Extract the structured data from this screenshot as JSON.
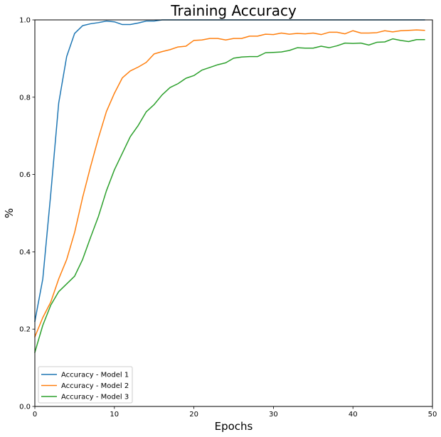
{
  "chart_data": {
    "type": "line",
    "title": "Training Accuracy",
    "xlabel": "Epochs",
    "ylabel": "%",
    "xlim": [
      0,
      50
    ],
    "ylim": [
      0.0,
      1.0
    ],
    "x_ticks": [
      "0",
      "10",
      "20",
      "30",
      "40",
      "50"
    ],
    "y_ticks": [
      "0.0",
      "0.2",
      "0.4",
      "0.6",
      "0.8",
      "1.0"
    ],
    "grid": false,
    "legend_position": "lower-left",
    "x": [
      0,
      1,
      2,
      3,
      4,
      5,
      6,
      7,
      8,
      9,
      10,
      11,
      12,
      13,
      14,
      15,
      16,
      17,
      18,
      19,
      20,
      21,
      22,
      23,
      24,
      25,
      26,
      27,
      28,
      29,
      30,
      31,
      32,
      33,
      34,
      35,
      36,
      37,
      38,
      39,
      40,
      41,
      42,
      43,
      44,
      45,
      46,
      47,
      48,
      49
    ],
    "series": [
      {
        "name": "Accuracy - Model 1",
        "color": "#1f77b4",
        "values": [
          0.22,
          0.33,
          0.55,
          0.785,
          0.905,
          0.965,
          0.985,
          0.99,
          0.993,
          0.997,
          0.995,
          0.988,
          0.988,
          0.992,
          0.997,
          0.997,
          1.0,
          1.0,
          1.0,
          1.0,
          1.0,
          1.0,
          1.0,
          1.0,
          1.0,
          1.0,
          1.0,
          1.0,
          1.0,
          1.0,
          1.0,
          1.0,
          1.0,
          1.0,
          1.0,
          1.0,
          1.0,
          1.0,
          1.0,
          1.0,
          1.0,
          1.0,
          1.0,
          1.0,
          1.0,
          1.0,
          1.0,
          1.0,
          1.0,
          1.0
        ]
      },
      {
        "name": "Accuracy - Model 2",
        "color": "#ff7f0e",
        "values": [
          0.18,
          0.23,
          0.27,
          0.33,
          0.38,
          0.45,
          0.54,
          0.62,
          0.695,
          0.763,
          0.81,
          0.85,
          0.868,
          0.878,
          0.89,
          0.912,
          0.918,
          0.923,
          0.93,
          0.932,
          0.947,
          0.948,
          0.952,
          0.952,
          0.948,
          0.952,
          0.952,
          0.958,
          0.958,
          0.963,
          0.962,
          0.966,
          0.963,
          0.965,
          0.964,
          0.966,
          0.962,
          0.968,
          0.968,
          0.964,
          0.972,
          0.966,
          0.966,
          0.967,
          0.972,
          0.969,
          0.972,
          0.973,
          0.974,
          0.973
        ]
      },
      {
        "name": "Accuracy - Model 3",
        "color": "#2ca02c",
        "values": [
          0.14,
          0.21,
          0.262,
          0.297,
          0.317,
          0.337,
          0.38,
          0.437,
          0.492,
          0.558,
          0.612,
          0.655,
          0.698,
          0.727,
          0.762,
          0.781,
          0.806,
          0.825,
          0.835,
          0.849,
          0.856,
          0.87,
          0.877,
          0.884,
          0.889,
          0.901,
          0.904,
          0.905,
          0.905,
          0.915,
          0.916,
          0.917,
          0.921,
          0.928,
          0.927,
          0.927,
          0.932,
          0.928,
          0.933,
          0.94,
          0.939,
          0.94,
          0.935,
          0.942,
          0.943,
          0.951,
          0.947,
          0.944,
          0.949,
          0.949
        ]
      }
    ]
  }
}
